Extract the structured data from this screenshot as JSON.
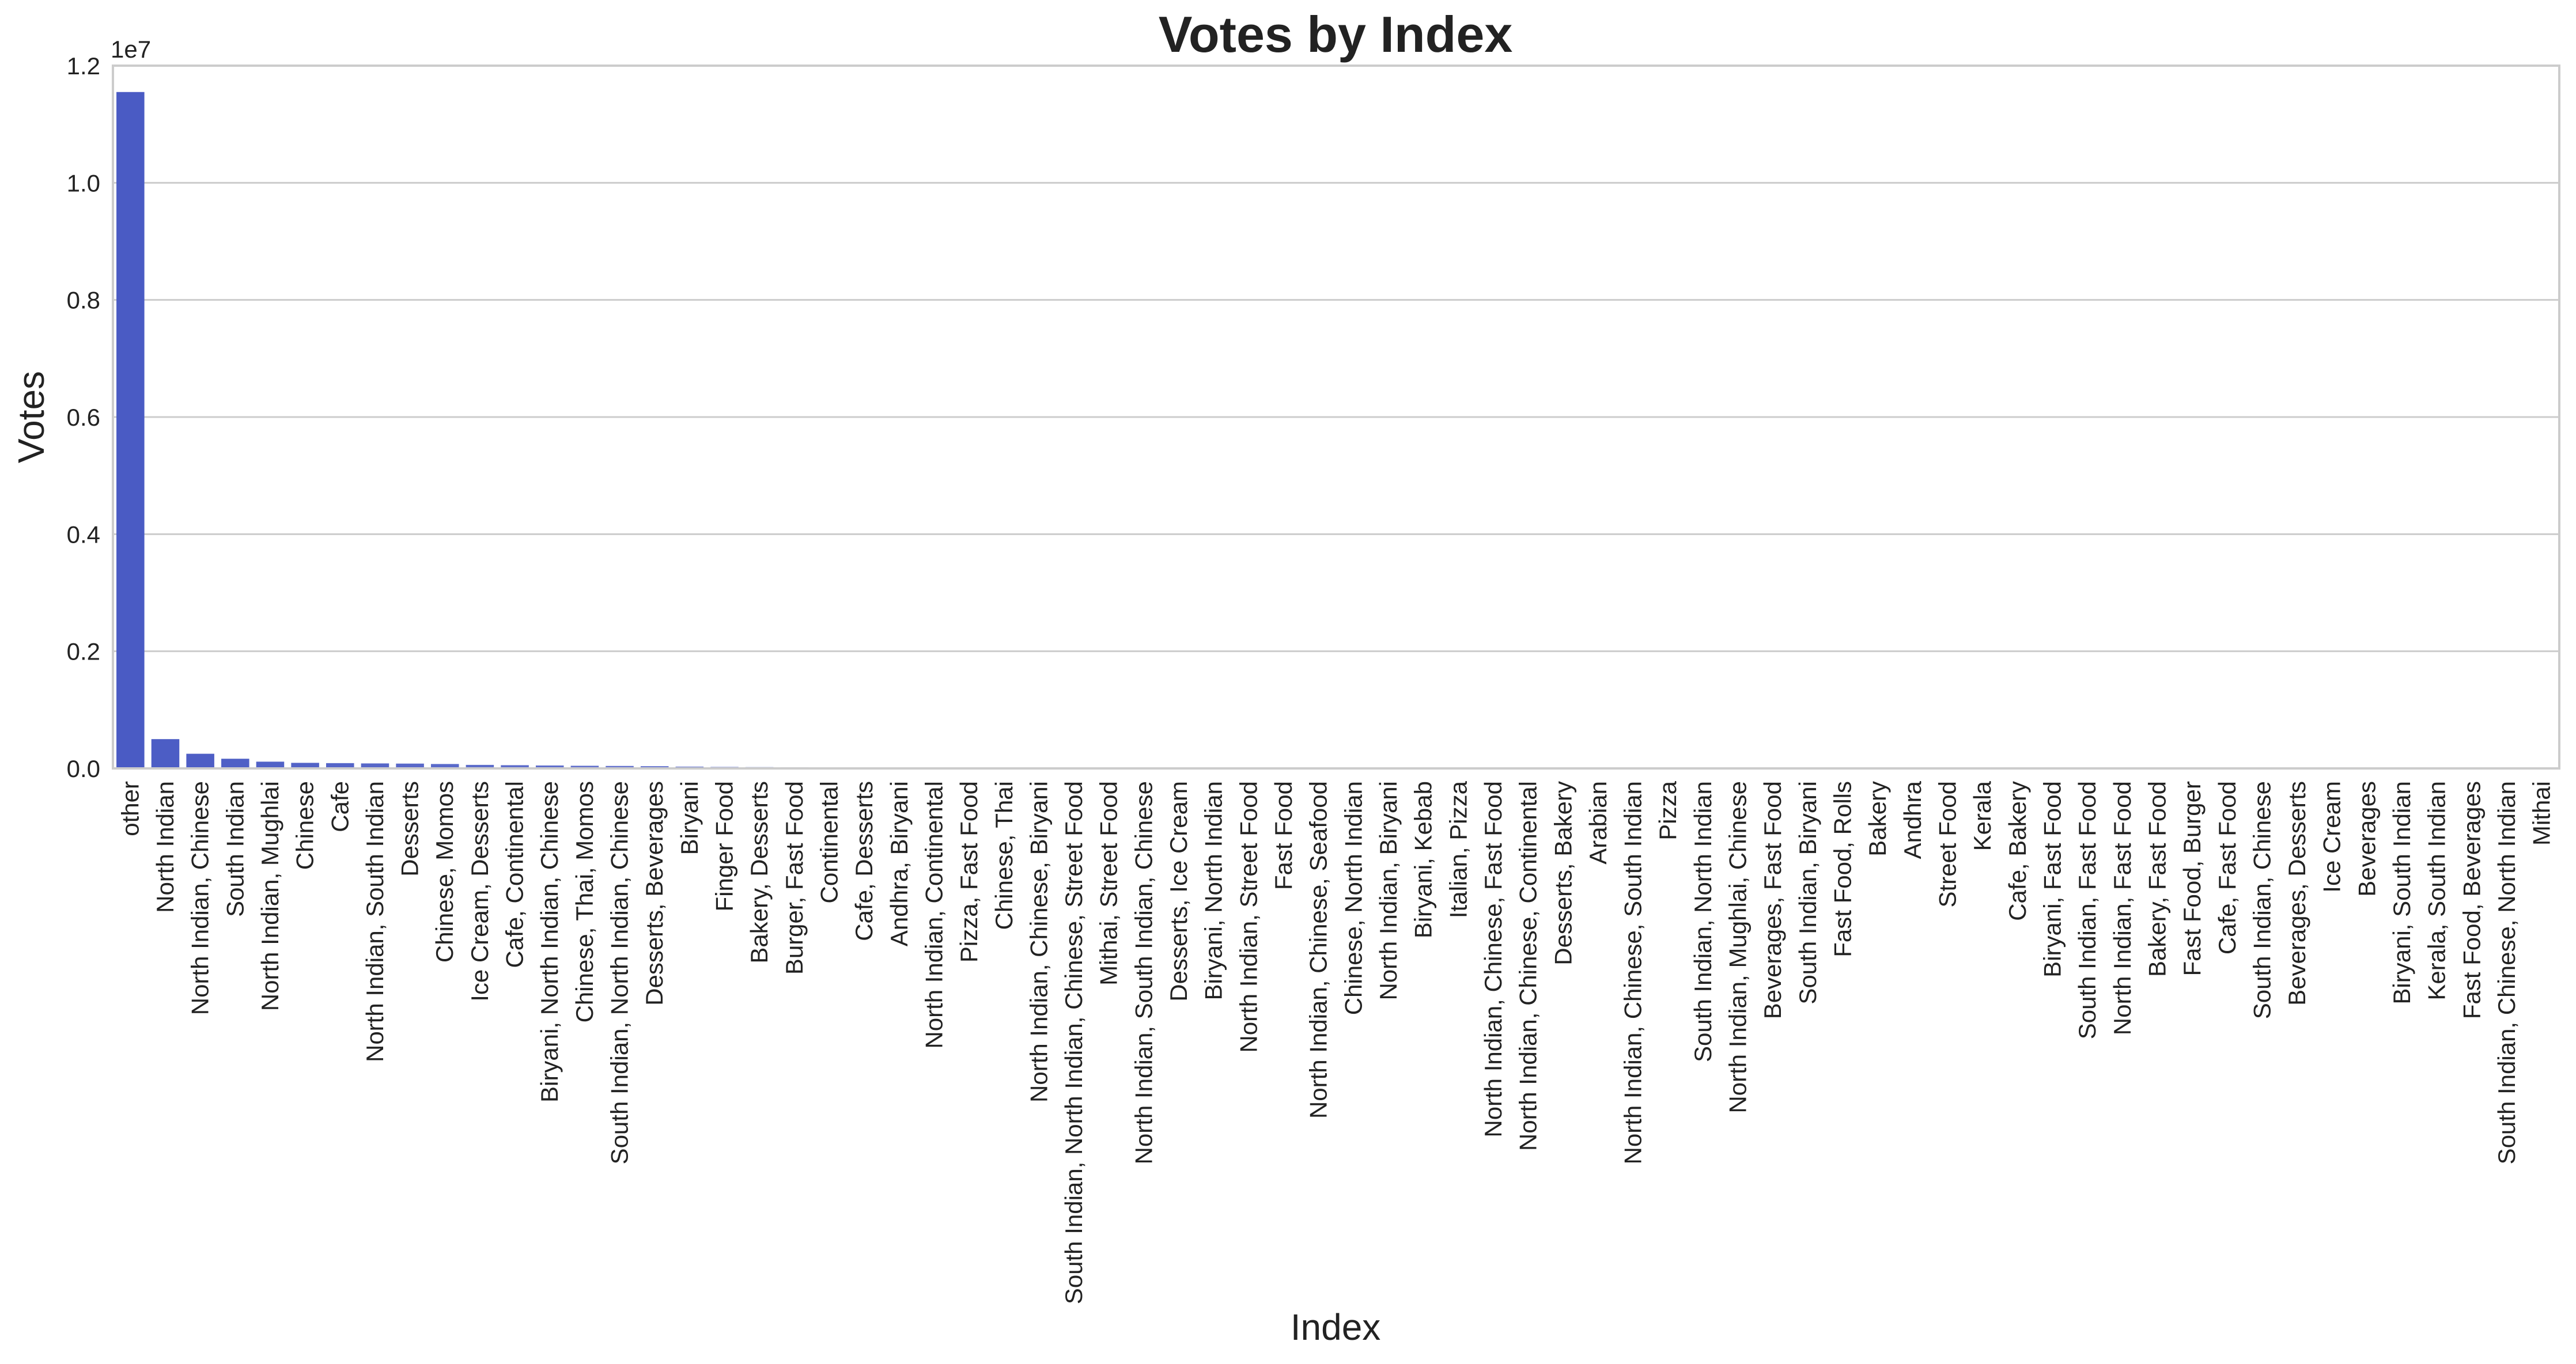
{
  "chart_data": {
    "type": "bar",
    "title": "Votes by Index",
    "xlabel": "Index",
    "ylabel": "Votes",
    "y_offset_label": "1e7",
    "ylim": [
      0,
      12000000
    ],
    "yticks": [
      0,
      2000000,
      4000000,
      6000000,
      8000000,
      10000000,
      12000000
    ],
    "ytick_labels": [
      "0.0",
      "0.2",
      "0.4",
      "0.6",
      "0.8",
      "1.0",
      "1.2"
    ],
    "grid": "y",
    "bar_color_start": "#4a5bc4",
    "bar_color_end": "#c8cdf0",
    "categories": [
      "other",
      "North Indian",
      "North Indian, Chinese",
      "South Indian",
      "North Indian, Mughlai",
      "Chinese",
      "Cafe",
      "North Indian, South Indian",
      "Desserts",
      "Chinese, Momos",
      "Ice Cream, Desserts",
      "Cafe, Continental",
      "Biryani, North Indian, Chinese",
      "Chinese, Thai, Momos",
      "South Indian, North Indian, Chinese",
      "Desserts, Beverages",
      "Biryani",
      "Finger Food",
      "Bakery, Desserts",
      "Burger, Fast Food",
      "Continental",
      "Cafe, Desserts",
      "Andhra, Biryani",
      "North Indian, Continental",
      "Pizza, Fast Food",
      "Chinese, Thai",
      "North Indian, Chinese, Biryani",
      "South Indian, North Indian, Chinese, Street Food",
      "Mithai, Street Food",
      "North Indian, South Indian, Chinese",
      "Desserts, Ice Cream",
      "Biryani, North Indian",
      "North Indian, Street Food",
      "Fast Food",
      "North Indian, Chinese, Seafood",
      "Chinese, North Indian",
      "North Indian, Biryani",
      "Biryani, Kebab",
      "Italian, Pizza",
      "North Indian, Chinese, Fast Food",
      "North Indian, Chinese, Continental",
      "Desserts, Bakery",
      "Arabian",
      "North Indian, Chinese, South Indian",
      "Pizza",
      "South Indian, North Indian",
      "North Indian, Mughlai, Chinese",
      "Beverages, Fast Food",
      "South Indian, Biryani",
      "Fast Food, Rolls",
      "Bakery",
      "Andhra",
      "Street Food",
      "Kerala",
      "Cafe, Bakery",
      "Biryani, Fast Food",
      "South Indian, Fast Food",
      "North Indian, Fast Food",
      "Bakery, Fast Food",
      "Fast Food, Burger",
      "Cafe, Fast Food",
      "South Indian, Chinese",
      "Beverages, Desserts",
      "Ice Cream",
      "Beverages",
      "Biryani, South Indian",
      "Kerala, South Indian",
      "Fast Food, Beverages",
      "South Indian, Chinese, North Indian",
      "Mithai"
    ],
    "values": [
      11550000,
      500000,
      250000,
      165000,
      115000,
      95000,
      90000,
      85000,
      82000,
      75000,
      60000,
      55000,
      50000,
      45000,
      42000,
      38000,
      30000,
      25000,
      22000,
      20000,
      18000,
      17000,
      16000,
      15000,
      14000,
      13000,
      12000,
      11000,
      10500,
      10000,
      9500,
      9000,
      8500,
      8000,
      7500,
      7000,
      6800,
      6500,
      6200,
      6000,
      5800,
      5500,
      5200,
      5000,
      4800,
      4600,
      4400,
      4200,
      4000,
      3800,
      3600,
      3400,
      3200,
      3000,
      2900,
      2800,
      2700,
      2600,
      2500,
      2400,
      2300,
      2200,
      2100,
      2000,
      1900,
      1800,
      1700,
      1600,
      1500,
      1400
    ]
  }
}
